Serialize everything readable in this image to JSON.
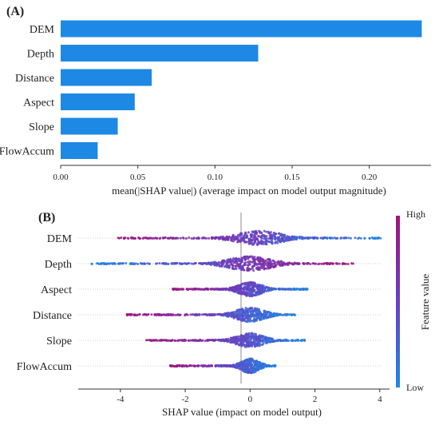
{
  "chart_data": [
    {
      "type": "bar",
      "orientation": "horizontal",
      "panel_label": "(A)",
      "categories": [
        "DEM",
        "Depth",
        "Distance",
        "Aspect",
        "Slope",
        "FlowAccum"
      ],
      "values": [
        0.234,
        0.128,
        0.059,
        0.048,
        0.037,
        0.024
      ],
      "xlabel": "mean(|SHAP value|) (average impact on model output magnitude)",
      "xlim": [
        0,
        0.24
      ],
      "xticks": [
        0.0,
        0.05,
        0.1,
        0.15,
        0.2
      ],
      "xtick_labels": [
        "0.00",
        "0.05",
        "0.10",
        "0.15",
        "0.20"
      ],
      "bar_color": "#1E88E5",
      "grid": false
    },
    {
      "type": "scatter",
      "subtype": "shap-beeswarm",
      "panel_label": "(B)",
      "categories": [
        "DEM",
        "Depth",
        "Aspect",
        "Distance",
        "Slope",
        "FlowAccum"
      ],
      "series": [
        {
          "feature": "DEM",
          "min": -4.1,
          "max": 4.1,
          "density_peak": 0.3,
          "low_side": "positive"
        },
        {
          "feature": "Depth",
          "min": -4.9,
          "max": 3.2,
          "density_peak": 0.0,
          "low_side": "negative"
        },
        {
          "feature": "Aspect",
          "min": -2.4,
          "max": 1.8,
          "density_peak": 0.0,
          "low_side": "positive"
        },
        {
          "feature": "Distance",
          "min": -3.8,
          "max": 1.4,
          "density_peak": 0.0,
          "low_side": "positive"
        },
        {
          "feature": "Slope",
          "min": -3.2,
          "max": 1.8,
          "density_peak": 0.0,
          "low_side": "positive"
        },
        {
          "feature": "FlowAccum",
          "min": -2.5,
          "max": 0.8,
          "density_peak": 0.0,
          "low_side": "positive"
        }
      ],
      "xlabel": "SHAP value (impact on model output)",
      "xlim": [
        -5.3,
        4.3
      ],
      "xticks": [
        -4,
        -2,
        0,
        2,
        4
      ],
      "xtick_labels": [
        "-4",
        "-2",
        "0",
        "2",
        "4"
      ],
      "colorbar": {
        "title": "Feature value",
        "high_label": "High",
        "low_label": "Low",
        "high_color": "#A0147A",
        "low_color": "#1E88E5"
      },
      "grid": false
    }
  ]
}
